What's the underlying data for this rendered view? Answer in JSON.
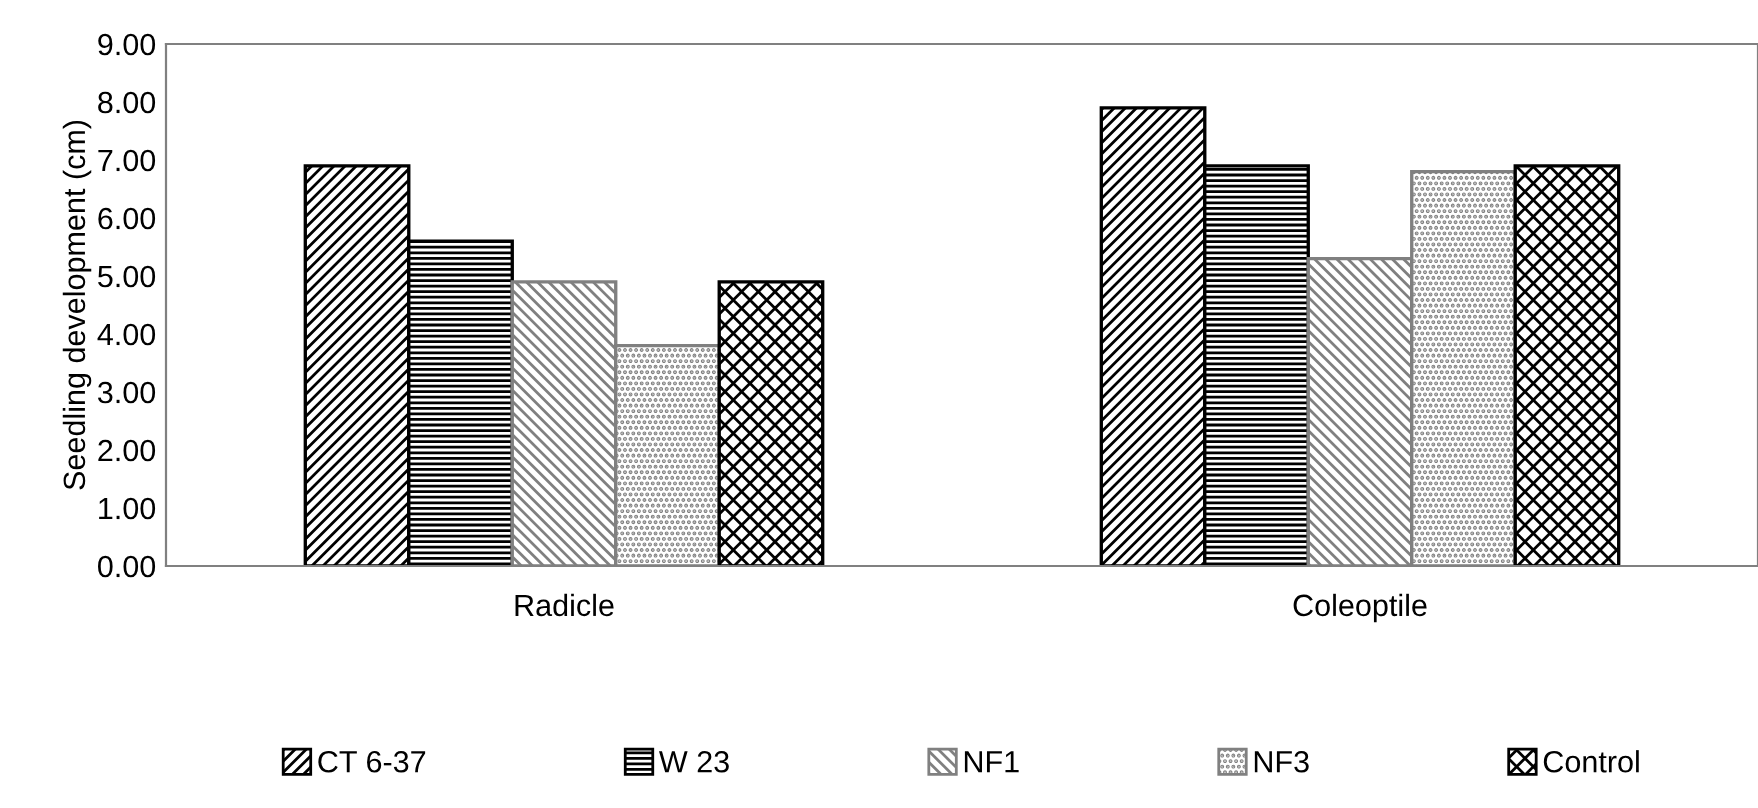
{
  "chart_data": {
    "type": "bar",
    "ylabel": "Seedling development (cm)",
    "categories": [
      "Radicle",
      "Coleoptile"
    ],
    "series": [
      {
        "name": "CT 6-37",
        "color": "#000000",
        "values": [
          6.9,
          7.9
        ]
      },
      {
        "name": "W 23",
        "color": "#000000",
        "values": [
          5.6,
          6.9
        ]
      },
      {
        "name": "NF1",
        "color": "#808080",
        "values": [
          4.9,
          5.3
        ]
      },
      {
        "name": "NF3",
        "color": "#808080",
        "values": [
          3.8,
          6.8
        ]
      },
      {
        "name": "Control",
        "color": "#000000",
        "values": [
          4.9,
          6.9
        ]
      }
    ],
    "ylim": [
      0,
      9
    ],
    "yticks": [
      {
        "value": 0,
        "label": "0.00"
      },
      {
        "value": 1,
        "label": "1.00"
      },
      {
        "value": 2,
        "label": "2.00"
      },
      {
        "value": 3,
        "label": "3.00"
      },
      {
        "value": 4,
        "label": "4.00"
      },
      {
        "value": 5,
        "label": "5.00"
      },
      {
        "value": 6,
        "label": "6.00"
      },
      {
        "value": 7,
        "label": "7.00"
      },
      {
        "value": 8,
        "label": "8.00"
      },
      {
        "value": 9,
        "label": "9.00"
      }
    ],
    "grid": false,
    "legend": "bottom"
  }
}
